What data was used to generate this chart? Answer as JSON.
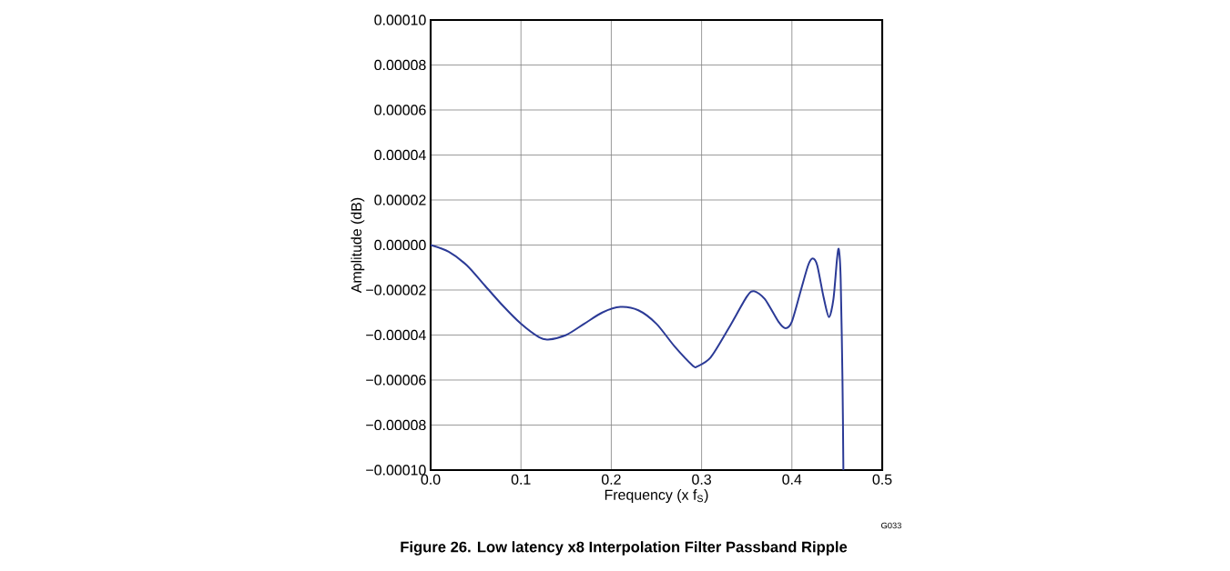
{
  "chart_data": {
    "type": "line",
    "title": "**Figure 26. Low latency x8 Interpolation Filter Passband Ripple**",
    "xlabel": "Frequency (x f$_{S}$)",
    "ylabel": "Amplitude (dB)",
    "annotations": [
      "G033"
    ],
    "x": [
      0,
      0.02,
      0.04,
      0.06,
      0.08,
      0.1,
      0.12,
      0.13,
      0.15,
      0.17,
      0.19,
      0.21,
      0.23,
      0.25,
      0.27,
      0.29,
      0.295,
      0.31,
      0.33,
      0.35,
      0.358,
      0.37,
      0.385,
      0.393,
      0.4,
      0.41,
      0.418,
      0.423,
      0.428,
      0.435,
      0.441,
      0.446,
      0.45,
      0.452,
      0.454,
      0.456,
      0.457
    ],
    "series": [
      {
        "color": "#2b3a96",
        "values": [
          0,
          -3e-06,
          -9e-06,
          -1.8e-05,
          -2.7e-05,
          -3.5e-05,
          -4.1e-05,
          -4.2e-05,
          -4e-05,
          -3.5e-05,
          -3e-05,
          -2.75e-05,
          -2.9e-05,
          -3.5e-05,
          -4.5e-05,
          -5.35e-05,
          -5.4e-05,
          -5e-05,
          -3.7e-05,
          -2.3e-05,
          -2.05e-05,
          -2.4e-05,
          -3.4e-05,
          -3.7e-05,
          -3.4e-05,
          -2e-05,
          -9e-06,
          -6e-06,
          -9e-06,
          -2.3e-05,
          -3.2e-05,
          -2.4e-05,
          -6e-06,
          -2e-06,
          -1.5e-05,
          -6e-05,
          -0.0001
        ]
      }
    ],
    "xlim": [
      0,
      0.5
    ],
    "xticks": [
      {
        "value": 0,
        "label": "0.0"
      },
      0.1,
      0.2,
      0.3,
      0.4,
      0.5
    ],
    "ylim": [
      -0.0001,
      0.0001
    ],
    "yticks": [
      {
        "value": -0.0001,
        "label": "−0.00010"
      },
      {
        "value": -8e-05,
        "label": "−0.00008"
      },
      {
        "value": -6e-05,
        "label": "−0.00006"
      },
      {
        "value": -4e-05,
        "label": "−0.00004"
      },
      {
        "value": -2e-05,
        "label": "−0.00002"
      },
      {
        "value": 0,
        "label": "0.00000"
      },
      {
        "value": 2e-05,
        "label": "0.00002"
      },
      {
        "value": 4e-05,
        "label": "0.00004"
      },
      {
        "value": 6e-05,
        "label": "0.00006"
      },
      {
        "value": 8e-05,
        "label": "0.00008"
      },
      {
        "value": 0.0001,
        "label": "0.00010"
      }
    ],
    "grid": true,
    "marker": "none",
    "line_style": "solid"
  }
}
